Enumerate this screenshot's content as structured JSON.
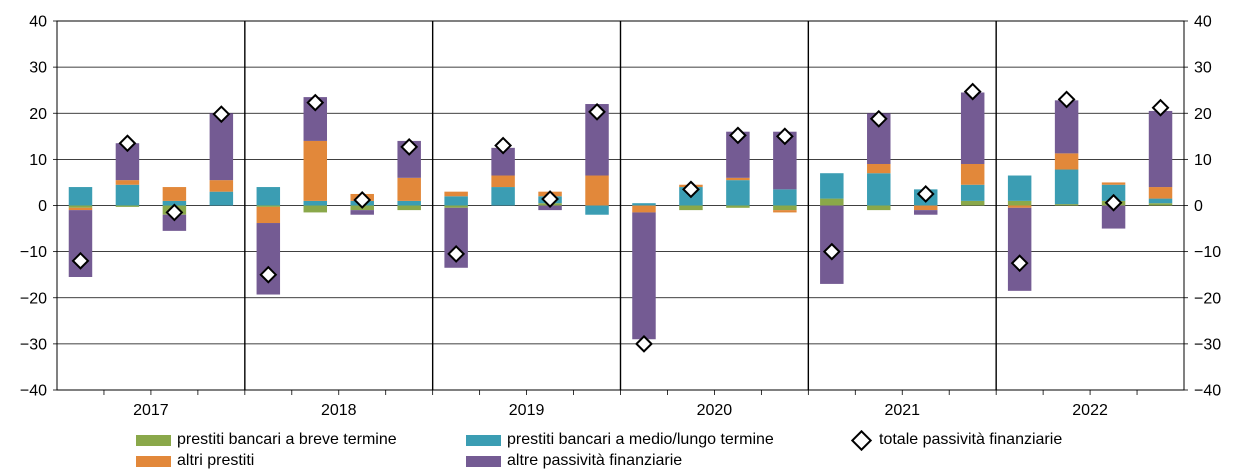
{
  "colors": {
    "short_loans": "#8aa84a",
    "mid_long_loans": "#3b9db3",
    "other_loans": "#e2883a",
    "other_liabilities": "#745b93",
    "total_marker_fill": "#ffffff",
    "total_marker_stroke": "#000000"
  },
  "chart_data": {
    "type": "bar",
    "stacked": true,
    "years": [
      "2017",
      "2018",
      "2019",
      "2020",
      "2021",
      "2022"
    ],
    "quarters_per_year": 4,
    "ylim": [
      -40,
      40
    ],
    "yticks": [
      -40,
      -30,
      -20,
      -10,
      0,
      10,
      20,
      30,
      40
    ],
    "ytick_labels": [
      "−40",
      "−20",
      "−10",
      "0",
      "10",
      "20",
      "30",
      "40"
    ],
    "ytick_labels_full": [
      "−40",
      "−30",
      "−20",
      "−10",
      "0",
      "10",
      "20",
      "30",
      "40"
    ],
    "gridlines": true,
    "legend_position": "bottom",
    "series": [
      {
        "key": "short_loans",
        "name": "prestiti bancari a  breve termine",
        "values": [
          -0.5,
          -0.3,
          -2,
          0,
          -0.3,
          -1.5,
          -1,
          -1,
          -0.5,
          0,
          0.5,
          0,
          0,
          -1,
          -0.5,
          -1,
          1.5,
          -1,
          0,
          1,
          1,
          0.3,
          1,
          0.5
        ]
      },
      {
        "key": "mid_long_loans",
        "name": "prestiti bancari a medio/lungo termine",
        "values": [
          4,
          4.5,
          1,
          3,
          4,
          1,
          1,
          1,
          2,
          4,
          1.5,
          -2,
          0.5,
          4,
          5.5,
          3.5,
          5.5,
          7,
          3.5,
          3.5,
          5.5,
          7.5,
          3.5,
          1
        ]
      },
      {
        "key": "other_loans",
        "name": "altri prestiti",
        "values": [
          -0.5,
          1,
          3,
          2.5,
          -3.5,
          13,
          1.5,
          5,
          1,
          2.5,
          1,
          6.5,
          -1.5,
          0.5,
          0.5,
          -0.5,
          0,
          2,
          -1,
          4.5,
          -0.5,
          3.5,
          0.5,
          2.5
        ]
      },
      {
        "key": "other_liabilities",
        "name": "altre passività finanziarie",
        "values": [
          -14.5,
          8,
          -3.5,
          14.5,
          -15.5,
          9.5,
          -1,
          8,
          -13,
          6,
          -1,
          15.5,
          -27.5,
          0,
          10,
          12.5,
          -17,
          11,
          -1,
          15.5,
          -18,
          11.5,
          -5,
          16.5
        ]
      }
    ],
    "total": {
      "name": "totale passività finanziarie",
      "values": [
        -12,
        13.5,
        -1.5,
        19.8,
        -15,
        22.3,
        1.2,
        12.7,
        -10.5,
        13,
        1.4,
        20.3,
        -30,
        3.5,
        15.2,
        15,
        -10,
        18.8,
        2.5,
        24.7,
        -12.5,
        23,
        0.6,
        21.2
      ]
    }
  }
}
